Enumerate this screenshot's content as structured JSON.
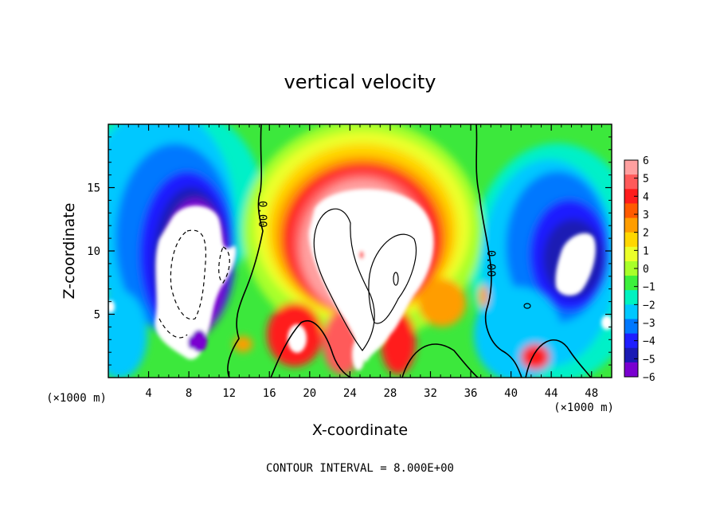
{
  "chart_data": {
    "type": "heatmap",
    "title": "vertical velocity",
    "xlabel": "X-coordinate",
    "ylabel": "Z-coordinate",
    "x_unit_left": "(×1000 m)",
    "x_unit_right": "(×1000 m)",
    "xlim": [
      0,
      50
    ],
    "ylim": [
      0,
      20
    ],
    "x_ticks": [
      4,
      8,
      12,
      16,
      20,
      24,
      28,
      32,
      36,
      40,
      44,
      48
    ],
    "y_ticks": [
      5,
      10,
      15
    ],
    "colorbar": {
      "ticks": [
        6,
        5,
        4,
        3,
        2,
        1,
        0,
        -1,
        -2,
        -3,
        -4,
        -5,
        -6
      ],
      "tick_labels": [
        "6",
        "5",
        "4",
        "3",
        "2",
        "1",
        "0",
        "−1",
        "−2",
        "−3",
        "−4",
        "−5",
        "−6"
      ],
      "colors": [
        "#ffa0a0",
        "#ff5a5a",
        "#ff1c1c",
        "#ff5a00",
        "#ff9d00",
        "#ffd700",
        "#ecff2a",
        "#a8ff29",
        "#3cf03c",
        "#00f2c0",
        "#00c8ff",
        "#0078ff",
        "#1e1eff",
        "#1a1ab4",
        "#7a00d0"
      ]
    },
    "contour_labels": [
      "0.00",
      "0.00"
    ],
    "contour_interval_text": "CONTOUR INTERVAL = 8.000E+00",
    "features": [
      {
        "kind": "updraft-core",
        "x": 24.5,
        "z": 10.5,
        "value": "> 6"
      },
      {
        "kind": "downdraft-core",
        "x": 8,
        "z": 10,
        "value": "< -6"
      },
      {
        "kind": "downdraft-core",
        "x": 46,
        "z": 10,
        "value": "< -6"
      }
    ]
  }
}
